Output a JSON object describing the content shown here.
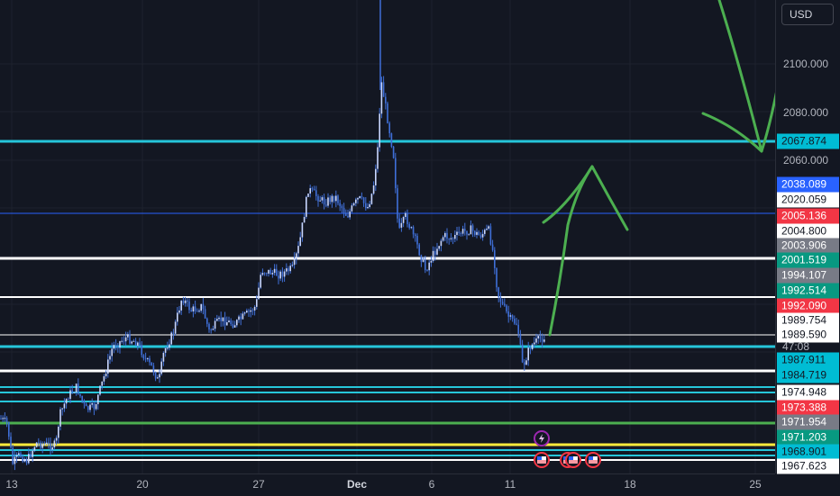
{
  "currency": "USD",
  "price_ticks": [
    "2100.000",
    "2080.000",
    "2060.000"
  ],
  "time_labels": [
    "13",
    "20",
    "27",
    "Dec",
    "6",
    "11",
    "18",
    "25"
  ],
  "countdown": "47:08",
  "price_labels": [
    {
      "text": "2067.874",
      "bg": "#00bcd4",
      "fg": "#131722"
    },
    {
      "text": "2038.089",
      "bg": "#2962ff",
      "fg": "#ffffff"
    },
    {
      "text": "2020.059",
      "bg": "#ffffff",
      "fg": "#131722"
    },
    {
      "text": "2005.136",
      "bg": "#f23645",
      "fg": "#ffffff"
    },
    {
      "text": "2004.800",
      "bg": "#ffffff",
      "fg": "#131722"
    },
    {
      "text": "2003.906",
      "bg": "#787b86",
      "fg": "#ffffff"
    },
    {
      "text": "2001.519",
      "bg": "#089981",
      "fg": "#ffffff"
    },
    {
      "text": "1994.107",
      "bg": "#787b86",
      "fg": "#ffffff"
    },
    {
      "text": "1992.514",
      "bg": "#089981",
      "fg": "#ffffff"
    },
    {
      "text": "1992.090",
      "bg": "#f23645",
      "fg": "#ffffff"
    },
    {
      "text": "1989.754",
      "bg": "#ffffff",
      "fg": "#131722"
    },
    {
      "text": "1989.590",
      "bg": "#ffffff",
      "fg": "#131722"
    },
    {
      "text": "1987.911",
      "bg": "#00bcd4",
      "fg": "#131722"
    },
    {
      "text": "1984.719",
      "bg": "#00bcd4",
      "fg": "#131722"
    },
    {
      "text": "1974.948",
      "bg": "#ffffff",
      "fg": "#131722"
    },
    {
      "text": "1973.388",
      "bg": "#f23645",
      "fg": "#ffffff"
    },
    {
      "text": "1971.954",
      "bg": "#787b86",
      "fg": "#ffffff"
    },
    {
      "text": "1971.203",
      "bg": "#089981",
      "fg": "#ffffff"
    },
    {
      "text": "1968.901",
      "bg": "#00bcd4",
      "fg": "#131722"
    },
    {
      "text": "1967.623",
      "bg": "#ffffff",
      "fg": "#131722"
    }
  ],
  "colors": {
    "background": "#131722",
    "candles": "#3f6fd8",
    "cyan_line": "#26c6da",
    "white_line": "#ffffff",
    "blue_line": "#2962ff",
    "green_line": "#4caf50",
    "yellow_line": "#ffeb3b",
    "annotation": "#4caf50"
  },
  "events": [
    {
      "icon": "lightning-icon",
      "color": "#9c27b0"
    },
    {
      "icon": "us-flag-icon",
      "color": "#f23645"
    },
    {
      "icon": "us-flag-icon",
      "color": "#f23645"
    },
    {
      "icon": "us-flag-icon",
      "color": "#f23645"
    },
    {
      "icon": "us-flag-icon",
      "color": "#f23645"
    }
  ]
}
